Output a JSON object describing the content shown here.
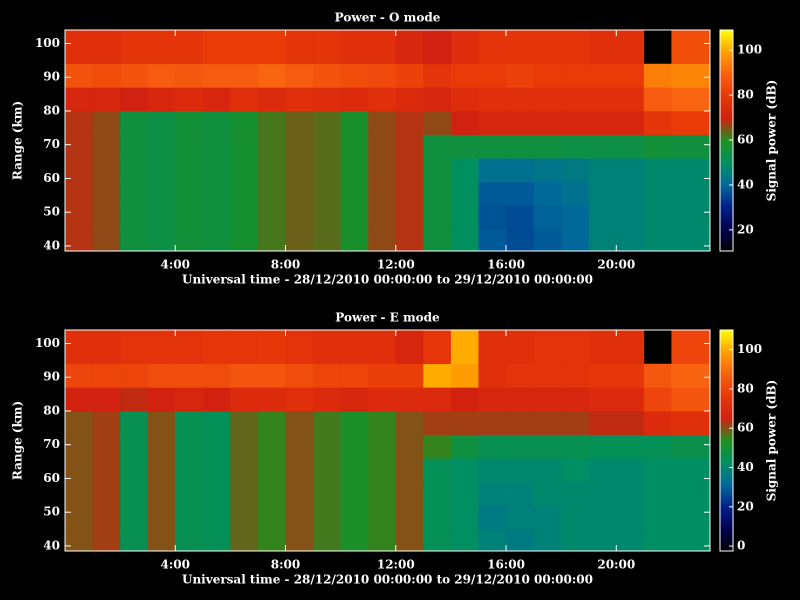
{
  "chart_data": [
    {
      "type": "heatmap",
      "title": "Power - O mode",
      "xlabel": "Universal time - 28/12/2010 00:00:00 to 29/12/2010 00:00:00",
      "ylabel": "Range (km)",
      "colorbar_label": "Signal power (dB)",
      "xbins": [
        0,
        1,
        2,
        3,
        4,
        5,
        6,
        7,
        8,
        9,
        10,
        11,
        12,
        13,
        14,
        15,
        16,
        17,
        18,
        19,
        20,
        21,
        22,
        23,
        23.4
      ],
      "ybins": [
        38.5,
        45,
        52,
        59,
        66,
        73,
        80,
        87,
        94,
        104
      ],
      "xlim": [
        0,
        23.4
      ],
      "ylim": [
        38.5,
        104
      ],
      "clim": [
        10.6,
        109
      ],
      "xticks": [
        {
          "value": 4,
          "label": "4:00"
        },
        {
          "value": 8,
          "label": "8:00"
        },
        {
          "value": 12,
          "label": "12:00"
        },
        {
          "value": 16,
          "label": "16:00"
        },
        {
          "value": 20,
          "label": "20:00"
        }
      ],
      "yticks": [
        40,
        50,
        60,
        70,
        80,
        90,
        100
      ],
      "cticks": [
        20,
        40,
        60,
        80,
        100
      ],
      "colormap": [
        "#000000",
        "#000050",
        "#00208a",
        "#006a9a",
        "#009060",
        "#209020",
        "#d02010",
        "#e83808",
        "#f86010",
        "#ffa000",
        "#ffff00"
      ],
      "values": [
        [
          68,
          66,
          55,
          54,
          56,
          55,
          57,
          62,
          64,
          63,
          58,
          66,
          68,
          55,
          50,
          38,
          36,
          38,
          40,
          46,
          46,
          48,
          48,
          48
        ],
        [
          68,
          66,
          55,
          54,
          56,
          55,
          57,
          62,
          64,
          63,
          58,
          66,
          68,
          55,
          50,
          37,
          36,
          39,
          40,
          46,
          46,
          48,
          48,
          48
        ],
        [
          68,
          66,
          55,
          54,
          56,
          55,
          57,
          62,
          64,
          63,
          58,
          66,
          68,
          55,
          50,
          38,
          38,
          40,
          42,
          46,
          46,
          48,
          48,
          48
        ],
        [
          68,
          66,
          55,
          54,
          56,
          55,
          57,
          62,
          64,
          63,
          58,
          66,
          68,
          55,
          50,
          42,
          42,
          43,
          44,
          46,
          46,
          48,
          48,
          48
        ],
        [
          68,
          66,
          55,
          54,
          56,
          55,
          57,
          62,
          64,
          63,
          58,
          66,
          68,
          55,
          55,
          55,
          55,
          55,
          54,
          54,
          54,
          56,
          55,
          55
        ],
        [
          68,
          66,
          55,
          54,
          56,
          55,
          57,
          62,
          64,
          63,
          58,
          66,
          68,
          66,
          70,
          72,
          72,
          72,
          72,
          72,
          72,
          78,
          80,
          80
        ],
        [
          72,
          72,
          70,
          72,
          74,
          72,
          76,
          74,
          76,
          75,
          74,
          76,
          74,
          72,
          75,
          76,
          76,
          76,
          76,
          76,
          76,
          88,
          90,
          90
        ],
        [
          86,
          85,
          86,
          88,
          87,
          88,
          88,
          90,
          88,
          86,
          85,
          84,
          82,
          78,
          80,
          80,
          82,
          80,
          80,
          80,
          80,
          94,
          95,
          95
        ],
        [
          76,
          76,
          78,
          78,
          78,
          80,
          80,
          80,
          78,
          78,
          76,
          76,
          72,
          70,
          75,
          78,
          78,
          78,
          78,
          76,
          76,
          null,
          85,
          85
        ]
      ]
    },
    {
      "type": "heatmap",
      "title": "Power - E mode",
      "xlabel": "Universal time - 28/12/2010 00:00:00 to 29/12/2010 00:00:00",
      "ylabel": "Range (km)",
      "colorbar_label": "Signal power (dB)",
      "xbins": [
        0,
        1,
        2,
        3,
        4,
        5,
        6,
        7,
        8,
        9,
        10,
        11,
        12,
        13,
        14,
        15,
        16,
        17,
        18,
        19,
        20,
        21,
        22,
        23,
        23.4
      ],
      "ybins": [
        38.5,
        45,
        52,
        59,
        66,
        73,
        80,
        87,
        94,
        104
      ],
      "xlim": [
        0,
        23.4
      ],
      "ylim": [
        38.5,
        104
      ],
      "clim": [
        -2.5,
        110
      ],
      "xticks": [
        {
          "value": 4,
          "label": "4:00"
        },
        {
          "value": 8,
          "label": "8:00"
        },
        {
          "value": 12,
          "label": "12:00"
        },
        {
          "value": 16,
          "label": "16:00"
        },
        {
          "value": 20,
          "label": "20:00"
        }
      ],
      "yticks": [
        40,
        50,
        60,
        70,
        80,
        90,
        100
      ],
      "cticks": [
        0,
        20,
        40,
        60,
        80,
        100
      ],
      "colormap": [
        "#000000",
        "#000050",
        "#00208a",
        "#006a9a",
        "#009060",
        "#209020",
        "#d02010",
        "#e83808",
        "#f86010",
        "#ffa000",
        "#ffff00"
      ],
      "values": [
        [
          60,
          62,
          45,
          60,
          45,
          44,
          58,
          55,
          60,
          56,
          52,
          55,
          60,
          44,
          42,
          38,
          36,
          38,
          40,
          40,
          40,
          42,
          42,
          42
        ],
        [
          60,
          62,
          45,
          60,
          45,
          44,
          58,
          55,
          60,
          56,
          52,
          55,
          60,
          44,
          42,
          36,
          38,
          38,
          40,
          40,
          40,
          42,
          42,
          42
        ],
        [
          60,
          62,
          45,
          60,
          45,
          44,
          58,
          55,
          60,
          56,
          52,
          55,
          60,
          44,
          42,
          38,
          38,
          40,
          40,
          40,
          40,
          42,
          42,
          42
        ],
        [
          60,
          62,
          45,
          60,
          45,
          44,
          58,
          55,
          60,
          56,
          52,
          55,
          60,
          44,
          42,
          40,
          40,
          40,
          42,
          40,
          40,
          42,
          42,
          42
        ],
        [
          60,
          62,
          45,
          60,
          45,
          44,
          58,
          55,
          60,
          56,
          52,
          55,
          60,
          55,
          48,
          45,
          45,
          45,
          45,
          44,
          44,
          44,
          46,
          46
        ],
        [
          60,
          62,
          45,
          60,
          45,
          44,
          58,
          55,
          60,
          56,
          52,
          55,
          60,
          62,
          62,
          62,
          62,
          62,
          62,
          64,
          64,
          70,
          72,
          72
        ],
        [
          66,
          66,
          64,
          66,
          68,
          66,
          70,
          70,
          72,
          70,
          68,
          70,
          70,
          70,
          66,
          68,
          68,
          68,
          68,
          70,
          70,
          80,
          84,
          84
        ],
        [
          80,
          80,
          80,
          82,
          82,
          82,
          84,
          84,
          82,
          80,
          80,
          78,
          78,
          100,
          98,
          72,
          74,
          74,
          74,
          75,
          75,
          85,
          88,
          88
        ],
        [
          72,
          72,
          74,
          74,
          74,
          75,
          75,
          76,
          74,
          72,
          72,
          72,
          68,
          75,
          100,
          72,
          72,
          74,
          74,
          72,
          72,
          null,
          80,
          80
        ]
      ]
    }
  ]
}
